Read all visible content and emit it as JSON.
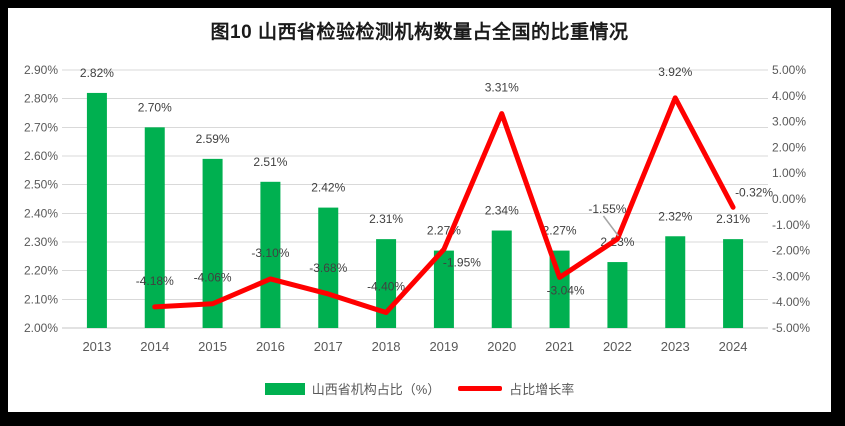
{
  "title": "图10 山西省检验检测机构数量占全国的比重情况",
  "legend": {
    "bar_label": "山西省机构占比（%）",
    "line_label": "占比增长率"
  },
  "colors": {
    "bar": "#00B050",
    "line": "#FF0000",
    "grid": "#D9D9D9",
    "axis_line": "#C6C6C6",
    "axis_text": "#595959",
    "data_label_text": "#404040",
    "leader": "#A6A6A6",
    "title_text": "#1A1A1A",
    "frame": "#000000"
  },
  "chart_data": {
    "type": "bar+line combo, dual axis",
    "categories": [
      "2013",
      "2014",
      "2015",
      "2016",
      "2017",
      "2018",
      "2019",
      "2020",
      "2021",
      "2022",
      "2023",
      "2024"
    ],
    "series": [
      {
        "name": "山西省机构占比（%）",
        "type": "bar",
        "axis": "left",
        "values": [
          2.82,
          2.7,
          2.59,
          2.51,
          2.42,
          2.31,
          2.27,
          2.34,
          2.27,
          2.23,
          2.32,
          2.31
        ],
        "labels": [
          "2.82%",
          "2.70%",
          "2.59%",
          "2.51%",
          "2.42%",
          "2.31%",
          "2.27%",
          "2.34%",
          "2.27%",
          "2.23%",
          "2.32%",
          "2.31%"
        ]
      },
      {
        "name": "占比增长率",
        "type": "line",
        "axis": "right",
        "values": [
          null,
          -4.18,
          -4.06,
          -3.1,
          -3.68,
          -4.4,
          -1.95,
          3.31,
          -3.04,
          -1.55,
          3.92,
          -0.32
        ],
        "labels": [
          null,
          "-4.18%",
          "-4.06%",
          "-3.10%",
          "-3.68%",
          "-4.40%",
          "-1.95%",
          "3.31%",
          "-3.04%",
          "-1.55%",
          "3.92%",
          "-0.32%"
        ],
        "label_offsets": {
          "2019": {
            "dx": 18,
            "dy": 13
          },
          "2021": {
            "dx": 6,
            "dy": 13
          },
          "2022": {
            "dx": -10,
            "dy": -30,
            "leader": true
          },
          "2024": {
            "dx": 21,
            "dy": -15
          }
        }
      }
    ],
    "left_axis": {
      "min": 2.0,
      "max": 2.9,
      "step": 0.1,
      "ticks": [
        "2.90%",
        "2.80%",
        "2.70%",
        "2.60%",
        "2.50%",
        "2.40%",
        "2.30%",
        "2.20%",
        "2.10%",
        "2.00%"
      ]
    },
    "right_axis": {
      "min": -5,
      "max": 5,
      "step": 1,
      "ticks": [
        "5.00%",
        "4.00%",
        "3.00%",
        "2.00%",
        "1.00%",
        "0.00%",
        "-1.00%",
        "-2.00%",
        "-3.00%",
        "-4.00%",
        "-5.00%"
      ]
    },
    "grid": "horizontal gridlines on",
    "legend_position": "bottom"
  }
}
